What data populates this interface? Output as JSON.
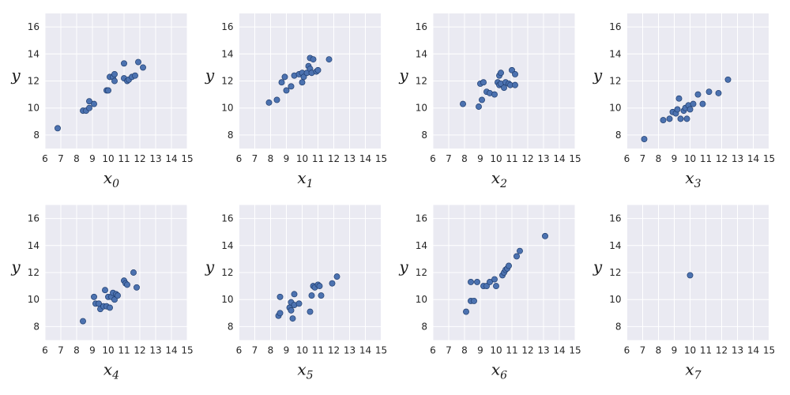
{
  "chart_data": [
    {
      "type": "scatter",
      "xlabel": "x",
      "xlabel_sub": "0",
      "ylabel": "y",
      "xlim": [
        6,
        15
      ],
      "ylim": [
        7,
        17
      ],
      "xticks": [
        "6",
        "7",
        "8",
        "9",
        "10",
        "11",
        "12",
        "13",
        "14",
        "15"
      ],
      "yticks": [
        "8",
        "10",
        "12",
        "14",
        "16"
      ],
      "grid": true,
      "points": [
        [
          6.8,
          8.5
        ],
        [
          8.4,
          9.8
        ],
        [
          8.6,
          9.8
        ],
        [
          8.8,
          10.0
        ],
        [
          8.8,
          10.5
        ],
        [
          9.1,
          10.3
        ],
        [
          9.9,
          11.3
        ],
        [
          10.0,
          11.3
        ],
        [
          10.1,
          12.3
        ],
        [
          10.3,
          12.3
        ],
        [
          10.4,
          12.0
        ],
        [
          10.4,
          12.5
        ],
        [
          11.0,
          12.2
        ],
        [
          11.0,
          13.3
        ],
        [
          11.2,
          12.0
        ],
        [
          11.3,
          12.1
        ],
        [
          11.5,
          12.3
        ],
        [
          11.7,
          12.4
        ],
        [
          11.9,
          13.4
        ],
        [
          12.2,
          13.0
        ]
      ]
    },
    {
      "type": "scatter",
      "xlabel": "x",
      "xlabel_sub": "1",
      "ylabel": "y",
      "xlim": [
        6,
        15
      ],
      "ylim": [
        7,
        17
      ],
      "xticks": [
        "6",
        "7",
        "8",
        "9",
        "10",
        "11",
        "12",
        "13",
        "14",
        "15"
      ],
      "yticks": [
        "8",
        "10",
        "12",
        "14",
        "16"
      ],
      "grid": true,
      "points": [
        [
          7.9,
          10.4
        ],
        [
          8.4,
          10.6
        ],
        [
          8.7,
          11.9
        ],
        [
          8.9,
          12.3
        ],
        [
          9.0,
          11.3
        ],
        [
          9.3,
          11.6
        ],
        [
          9.5,
          12.4
        ],
        [
          9.8,
          12.5
        ],
        [
          10.0,
          12.6
        ],
        [
          10.0,
          11.9
        ],
        [
          10.1,
          12.3
        ],
        [
          10.3,
          12.6
        ],
        [
          10.4,
          13.1
        ],
        [
          10.5,
          12.9
        ],
        [
          10.5,
          13.7
        ],
        [
          10.6,
          12.6
        ],
        [
          10.7,
          13.6
        ],
        [
          10.9,
          12.7
        ],
        [
          11.0,
          12.8
        ],
        [
          11.7,
          13.6
        ]
      ]
    },
    {
      "type": "scatter",
      "xlabel": "x",
      "xlabel_sub": "2",
      "ylabel": "y",
      "xlim": [
        6,
        15
      ],
      "ylim": [
        7,
        17
      ],
      "xticks": [
        "6",
        "7",
        "8",
        "9",
        "10",
        "11",
        "12",
        "13",
        "14",
        "15"
      ],
      "yticks": [
        "8",
        "10",
        "12",
        "14",
        "16"
      ],
      "grid": true,
      "points": [
        [
          7.9,
          10.3
        ],
        [
          8.9,
          10.1
        ],
        [
          9.0,
          11.8
        ],
        [
          9.1,
          10.6
        ],
        [
          9.2,
          11.9
        ],
        [
          9.4,
          11.2
        ],
        [
          9.6,
          11.1
        ],
        [
          9.9,
          11.0
        ],
        [
          10.1,
          11.9
        ],
        [
          10.2,
          11.7
        ],
        [
          10.2,
          12.4
        ],
        [
          10.3,
          12.6
        ],
        [
          10.3,
          11.8
        ],
        [
          10.5,
          11.5
        ],
        [
          10.6,
          11.9
        ],
        [
          10.8,
          11.8
        ],
        [
          10.9,
          11.7
        ],
        [
          11.0,
          12.8
        ],
        [
          11.2,
          11.7
        ],
        [
          11.2,
          12.5
        ]
      ]
    },
    {
      "type": "scatter",
      "xlabel": "x",
      "xlabel_sub": "3",
      "ylabel": "y",
      "xlim": [
        6,
        15
      ],
      "ylim": [
        7,
        17
      ],
      "xticks": [
        "6",
        "7",
        "8",
        "9",
        "10",
        "11",
        "12",
        "13",
        "14",
        "15"
      ],
      "yticks": [
        "8",
        "10",
        "12",
        "14",
        "16"
      ],
      "grid": true,
      "points": [
        [
          7.1,
          7.7
        ],
        [
          8.3,
          9.1
        ],
        [
          8.7,
          9.2
        ],
        [
          8.9,
          9.7
        ],
        [
          9.1,
          9.6
        ],
        [
          9.2,
          9.9
        ],
        [
          9.3,
          10.7
        ],
        [
          9.4,
          9.2
        ],
        [
          9.6,
          9.8
        ],
        [
          9.7,
          10.0
        ],
        [
          9.8,
          9.2
        ],
        [
          9.9,
          10.2
        ],
        [
          10.0,
          9.9
        ],
        [
          10.2,
          10.3
        ],
        [
          10.5,
          11.0
        ],
        [
          10.8,
          10.3
        ],
        [
          11.2,
          11.2
        ],
        [
          11.8,
          11.1
        ],
        [
          12.4,
          12.1
        ]
      ]
    },
    {
      "type": "scatter",
      "xlabel": "x",
      "xlabel_sub": "4",
      "ylabel": "y",
      "xlim": [
        6,
        15
      ],
      "ylim": [
        7,
        17
      ],
      "xticks": [
        "6",
        "7",
        "8",
        "9",
        "10",
        "11",
        "12",
        "13",
        "14",
        "15"
      ],
      "yticks": [
        "8",
        "10",
        "12",
        "14",
        "16"
      ],
      "grid": true,
      "points": [
        [
          8.4,
          8.4
        ],
        [
          9.1,
          10.2
        ],
        [
          9.2,
          9.7
        ],
        [
          9.4,
          9.7
        ],
        [
          9.5,
          9.3
        ],
        [
          9.7,
          9.5
        ],
        [
          9.8,
          10.7
        ],
        [
          9.9,
          9.5
        ],
        [
          10.0,
          10.2
        ],
        [
          10.1,
          9.4
        ],
        [
          10.2,
          10.2
        ],
        [
          10.3,
          10.5
        ],
        [
          10.4,
          10.0
        ],
        [
          10.5,
          10.4
        ],
        [
          10.6,
          10.3
        ],
        [
          11.0,
          11.4
        ],
        [
          11.1,
          11.2
        ],
        [
          11.2,
          11.1
        ],
        [
          11.6,
          12.0
        ],
        [
          11.8,
          10.9
        ]
      ]
    },
    {
      "type": "scatter",
      "xlabel": "x",
      "xlabel_sub": "5",
      "ylabel": "y",
      "xlim": [
        6,
        15
      ],
      "ylim": [
        7,
        17
      ],
      "xticks": [
        "6",
        "7",
        "8",
        "9",
        "10",
        "11",
        "12",
        "13",
        "14",
        "15"
      ],
      "yticks": [
        "8",
        "10",
        "12",
        "14",
        "16"
      ],
      "grid": true,
      "points": [
        [
          8.5,
          8.8
        ],
        [
          8.6,
          9.0
        ],
        [
          8.6,
          10.2
        ],
        [
          9.2,
          9.4
        ],
        [
          9.3,
          9.2
        ],
        [
          9.3,
          9.8
        ],
        [
          9.4,
          8.6
        ],
        [
          9.5,
          9.6
        ],
        [
          9.5,
          10.4
        ],
        [
          9.8,
          9.7
        ],
        [
          10.5,
          9.1
        ],
        [
          10.6,
          10.3
        ],
        [
          10.7,
          11.0
        ],
        [
          10.8,
          10.9
        ],
        [
          11.0,
          11.1
        ],
        [
          11.1,
          11.0
        ],
        [
          11.2,
          10.3
        ],
        [
          11.9,
          11.2
        ],
        [
          12.2,
          11.7
        ]
      ]
    },
    {
      "type": "scatter",
      "xlabel": "x",
      "xlabel_sub": "6",
      "ylabel": "y",
      "xlim": [
        6,
        15
      ],
      "ylim": [
        7,
        17
      ],
      "xticks": [
        "6",
        "7",
        "8",
        "9",
        "10",
        "11",
        "12",
        "13",
        "14",
        "15"
      ],
      "yticks": [
        "8",
        "10",
        "12",
        "14",
        "16"
      ],
      "grid": true,
      "points": [
        [
          8.1,
          9.1
        ],
        [
          8.4,
          9.9
        ],
        [
          8.4,
          11.3
        ],
        [
          8.6,
          9.9
        ],
        [
          8.8,
          11.3
        ],
        [
          9.2,
          11.0
        ],
        [
          9.4,
          11.0
        ],
        [
          9.6,
          11.3
        ],
        [
          9.9,
          11.5
        ],
        [
          10.0,
          11.0
        ],
        [
          10.4,
          11.8
        ],
        [
          10.5,
          12.0
        ],
        [
          10.6,
          12.2
        ],
        [
          10.7,
          12.3
        ],
        [
          10.8,
          12.5
        ],
        [
          11.3,
          13.2
        ],
        [
          11.5,
          13.6
        ],
        [
          13.1,
          14.7
        ]
      ]
    },
    {
      "type": "scatter",
      "xlabel": "x",
      "xlabel_sub": "7",
      "ylabel": "y",
      "xlim": [
        6,
        15
      ],
      "ylim": [
        7,
        17
      ],
      "xticks": [
        "6",
        "7",
        "8",
        "9",
        "10",
        "11",
        "12",
        "13",
        "14",
        "15"
      ],
      "yticks": [
        "8",
        "10",
        "12",
        "14",
        "16"
      ],
      "grid": true,
      "points": [
        [
          10.0,
          11.8
        ]
      ]
    }
  ]
}
